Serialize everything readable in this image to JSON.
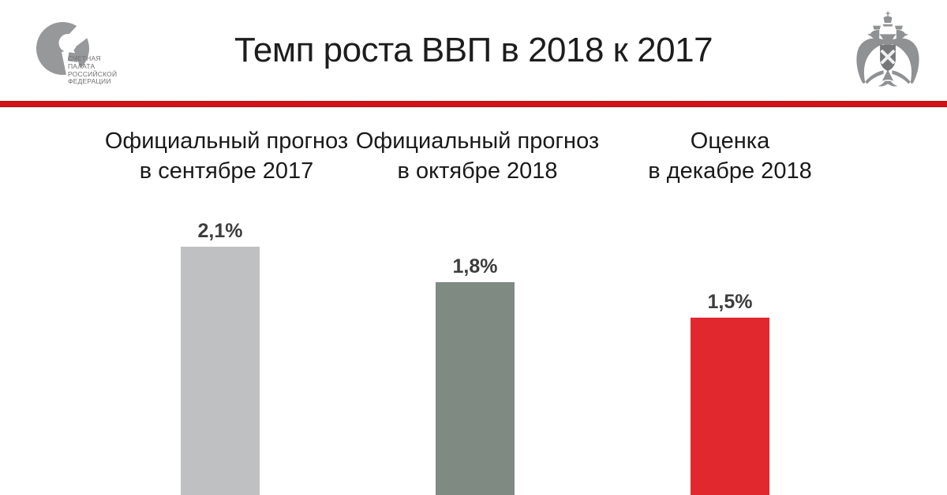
{
  "header": {
    "title": "Темп роста ВВП в 2018 к 2017",
    "logo": {
      "icon": "accounts-chamber-logo-icon",
      "org_line1": "СЧЕТНАЯ",
      "org_line2": "ПАЛАТА",
      "org_line3": "РОССИЙСКОЙ",
      "org_line4": "ФЕДЕРАЦИИ"
    },
    "emblem_icon": "double-headed-eagle-emblem-icon",
    "divider_color": "#d21419"
  },
  "chart_data": {
    "type": "bar",
    "title": "Темп роста ВВП в 2018 к 2017",
    "unit": "%",
    "grid": false,
    "legend": false,
    "ylim": [
      0,
      2.3
    ],
    "categories": [
      "Официальный прогноз в сентябре 2017",
      "Официальный прогноз в октябре 2018",
      "Оценка в декабре 2018"
    ],
    "values": [
      2.1,
      1.8,
      1.5
    ],
    "value_labels": [
      "2,1%",
      "1,8%",
      "1,5%"
    ],
    "bar_colors": [
      "#bfc0c2",
      "#7f8a83",
      "#e2282f"
    ],
    "columns": [
      {
        "label_line1": "Официальный прогноз",
        "label_line2": "в сентябре 2017",
        "value": 2.1,
        "value_label": "2,1%",
        "color": "#bfc0c2"
      },
      {
        "label_line1": "Официальный прогноз",
        "label_line2": "в октябре 2018",
        "value": 1.8,
        "value_label": "1,8%",
        "color": "#7f8a83"
      },
      {
        "label_line1": "Оценка",
        "label_line2": "в декабре 2018",
        "value": 1.5,
        "value_label": "1,5%",
        "color": "#e2282f"
      }
    ]
  }
}
